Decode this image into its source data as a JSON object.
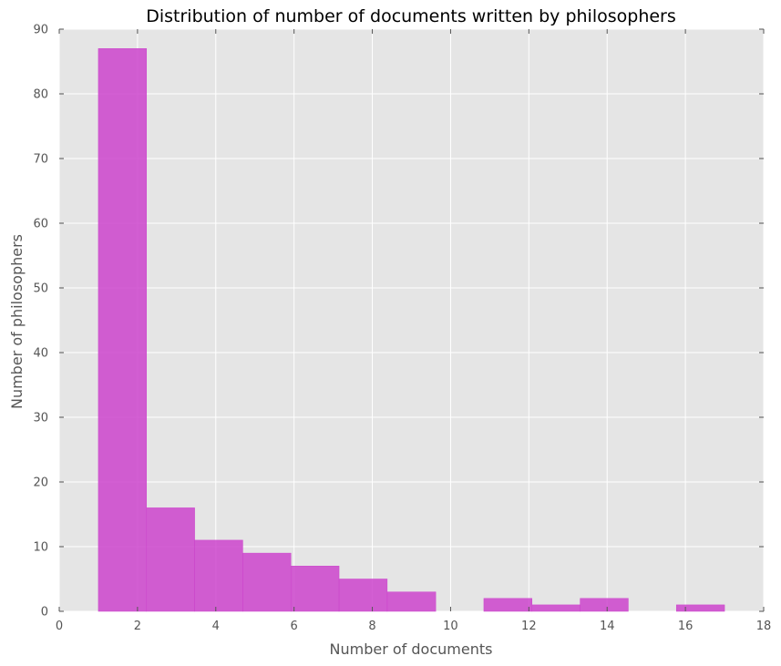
{
  "chart_data": {
    "type": "bar",
    "title": "Distribution of number of documents written by philosophers",
    "xlabel": "Number of documents",
    "ylabel": "Number of philosophers",
    "xlim": [
      0,
      18
    ],
    "ylim": [
      0,
      90
    ],
    "xticks": [
      "0",
      "2",
      "4",
      "6",
      "8",
      "10",
      "12",
      "14",
      "16",
      "18"
    ],
    "yticks": [
      "0",
      "10",
      "20",
      "30",
      "40",
      "50",
      "60",
      "70",
      "80",
      "90"
    ],
    "grid": true,
    "bar_color": "#cc44cc",
    "background_color": "#e5e5e5",
    "bins": [
      {
        "x0": 1.0,
        "x1": 2.23,
        "value": 87
      },
      {
        "x0": 2.23,
        "x1": 3.46,
        "value": 16
      },
      {
        "x0": 3.46,
        "x1": 4.69,
        "value": 11
      },
      {
        "x0": 4.69,
        "x1": 5.92,
        "value": 9
      },
      {
        "x0": 5.92,
        "x1": 7.15,
        "value": 7
      },
      {
        "x0": 7.15,
        "x1": 8.38,
        "value": 5
      },
      {
        "x0": 8.38,
        "x1": 9.62,
        "value": 3
      },
      {
        "x0": 9.62,
        "x1": 10.85,
        "value": 0
      },
      {
        "x0": 10.85,
        "x1": 12.08,
        "value": 2
      },
      {
        "x0": 12.08,
        "x1": 13.31,
        "value": 1
      },
      {
        "x0": 13.31,
        "x1": 14.54,
        "value": 2
      },
      {
        "x0": 14.54,
        "x1": 15.77,
        "value": 0
      },
      {
        "x0": 15.77,
        "x1": 17.0,
        "value": 1
      }
    ]
  }
}
